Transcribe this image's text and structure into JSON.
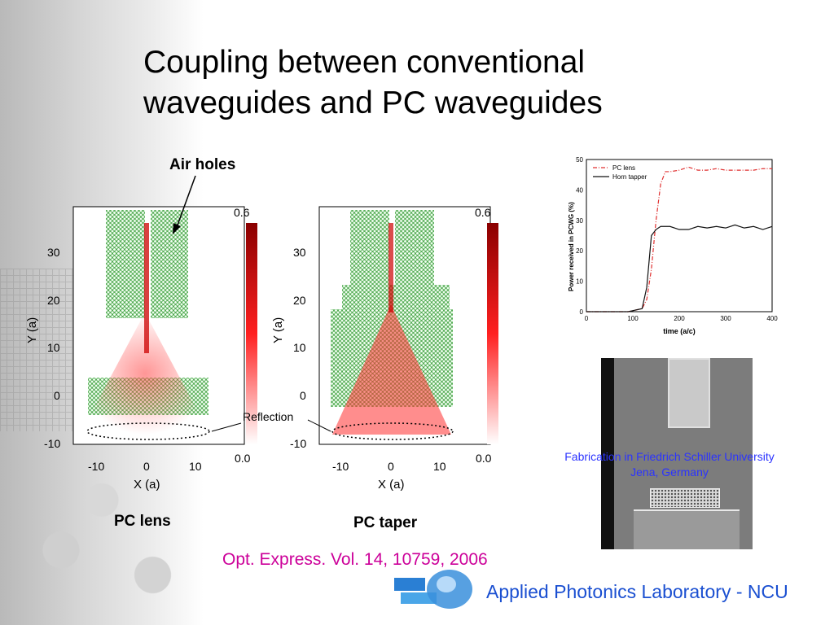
{
  "slide": {
    "title_line1": "Coupling between conventional",
    "title_line2": "waveguides and PC waveguides",
    "air_holes_label": "Air holes",
    "reflection_label": "Reflection",
    "pc_lens_label": "PC lens",
    "pc_taper_label": "PC taper",
    "citation": "Opt. Express. Vol. 14, 10759, 2006",
    "fabrication_line1": "Fabrication in Friedrich Schiller University",
    "fabrication_line2": "Jena, Germany",
    "lab_name": "Applied Photonics Laboratory - NCU"
  },
  "field_plots": {
    "y_ticks": [
      "30",
      "20",
      "10",
      "0",
      "-10"
    ],
    "x_ticks": [
      "-10",
      "0",
      "10"
    ],
    "y_label": "Y (a)",
    "x_label": "X (a)",
    "colorbar_max": "0.6",
    "colorbar_min": "0.0"
  },
  "chart_data": {
    "type": "line",
    "xlabel": "time (a/c)",
    "ylabel": "Power received in PCWG (%)",
    "xlim": [
      0,
      400
    ],
    "ylim": [
      0,
      50
    ],
    "x_ticks": [
      "0",
      "100",
      "200",
      "300",
      "400"
    ],
    "y_ticks": [
      "0",
      "10",
      "20",
      "30",
      "40",
      "50"
    ],
    "legend_position": "top-left",
    "series": [
      {
        "name": "PC lens",
        "color": "#e03030",
        "style": "dash-dot",
        "x": [
          0,
          90,
          120,
          130,
          140,
          150,
          160,
          170,
          180,
          200,
          220,
          240,
          260,
          280,
          300,
          320,
          340,
          360,
          380,
          400
        ],
        "y": [
          0,
          0,
          1,
          4,
          14,
          30,
          42,
          46,
          46,
          46.5,
          47.5,
          46.5,
          46.5,
          47,
          46.5,
          46.5,
          46.5,
          46.5,
          47,
          47
        ]
      },
      {
        "name": "Horn tapper",
        "color": "#111111",
        "style": "solid",
        "x": [
          0,
          90,
          120,
          130,
          140,
          150,
          160,
          170,
          180,
          200,
          220,
          240,
          260,
          280,
          300,
          320,
          340,
          360,
          380,
          400
        ],
        "y": [
          0,
          0,
          1,
          8,
          25,
          27,
          28,
          28,
          28,
          27,
          27,
          28,
          27.5,
          28,
          27.5,
          28.5,
          27.5,
          28,
          27,
          28
        ]
      }
    ]
  }
}
